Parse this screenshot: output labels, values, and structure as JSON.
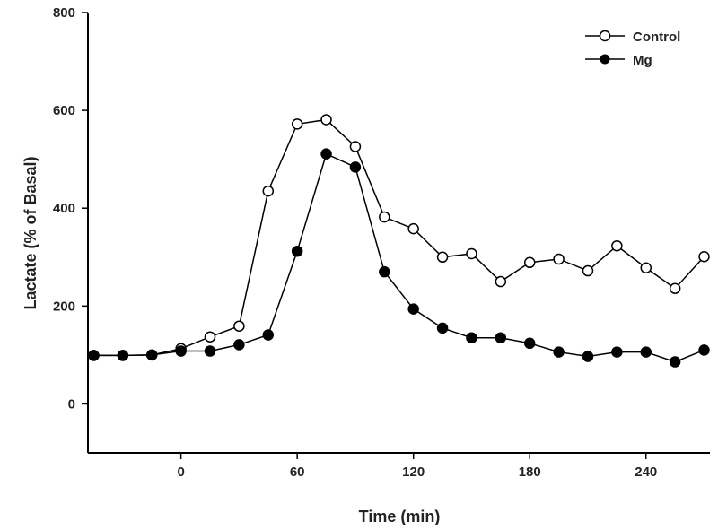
{
  "chart_data": {
    "type": "line",
    "title": "",
    "xlabel": "Time (min)",
    "ylabel": "Lactate (% of Basal)",
    "xlim": [
      -48,
      273
    ],
    "ylim": [
      -100,
      800
    ],
    "xticks": [
      0,
      60,
      120,
      180,
      240
    ],
    "yticks": [
      0,
      200,
      400,
      600,
      800
    ],
    "grid": false,
    "legend_position": "top-right",
    "x": [
      -45,
      -30,
      -15,
      0,
      15,
      30,
      45,
      60,
      75,
      90,
      105,
      120,
      135,
      150,
      165,
      180,
      195,
      210,
      225,
      240,
      255,
      270
    ],
    "series": [
      {
        "name": "Control",
        "marker": "open-circle",
        "color": "#000000",
        "values": [
          99,
          99,
          100,
          113,
          137,
          159,
          435,
          572,
          581,
          526,
          382,
          358,
          300,
          307,
          250,
          289,
          296,
          272,
          323,
          278,
          236,
          301
        ]
      },
      {
        "name": "Mg",
        "marker": "filled-circle",
        "color": "#000000",
        "values": [
          99,
          99,
          100,
          108,
          108,
          121,
          141,
          312,
          511,
          484,
          270,
          194,
          155,
          135,
          135,
          124,
          106,
          97,
          106,
          106,
          86,
          110
        ]
      }
    ]
  }
}
